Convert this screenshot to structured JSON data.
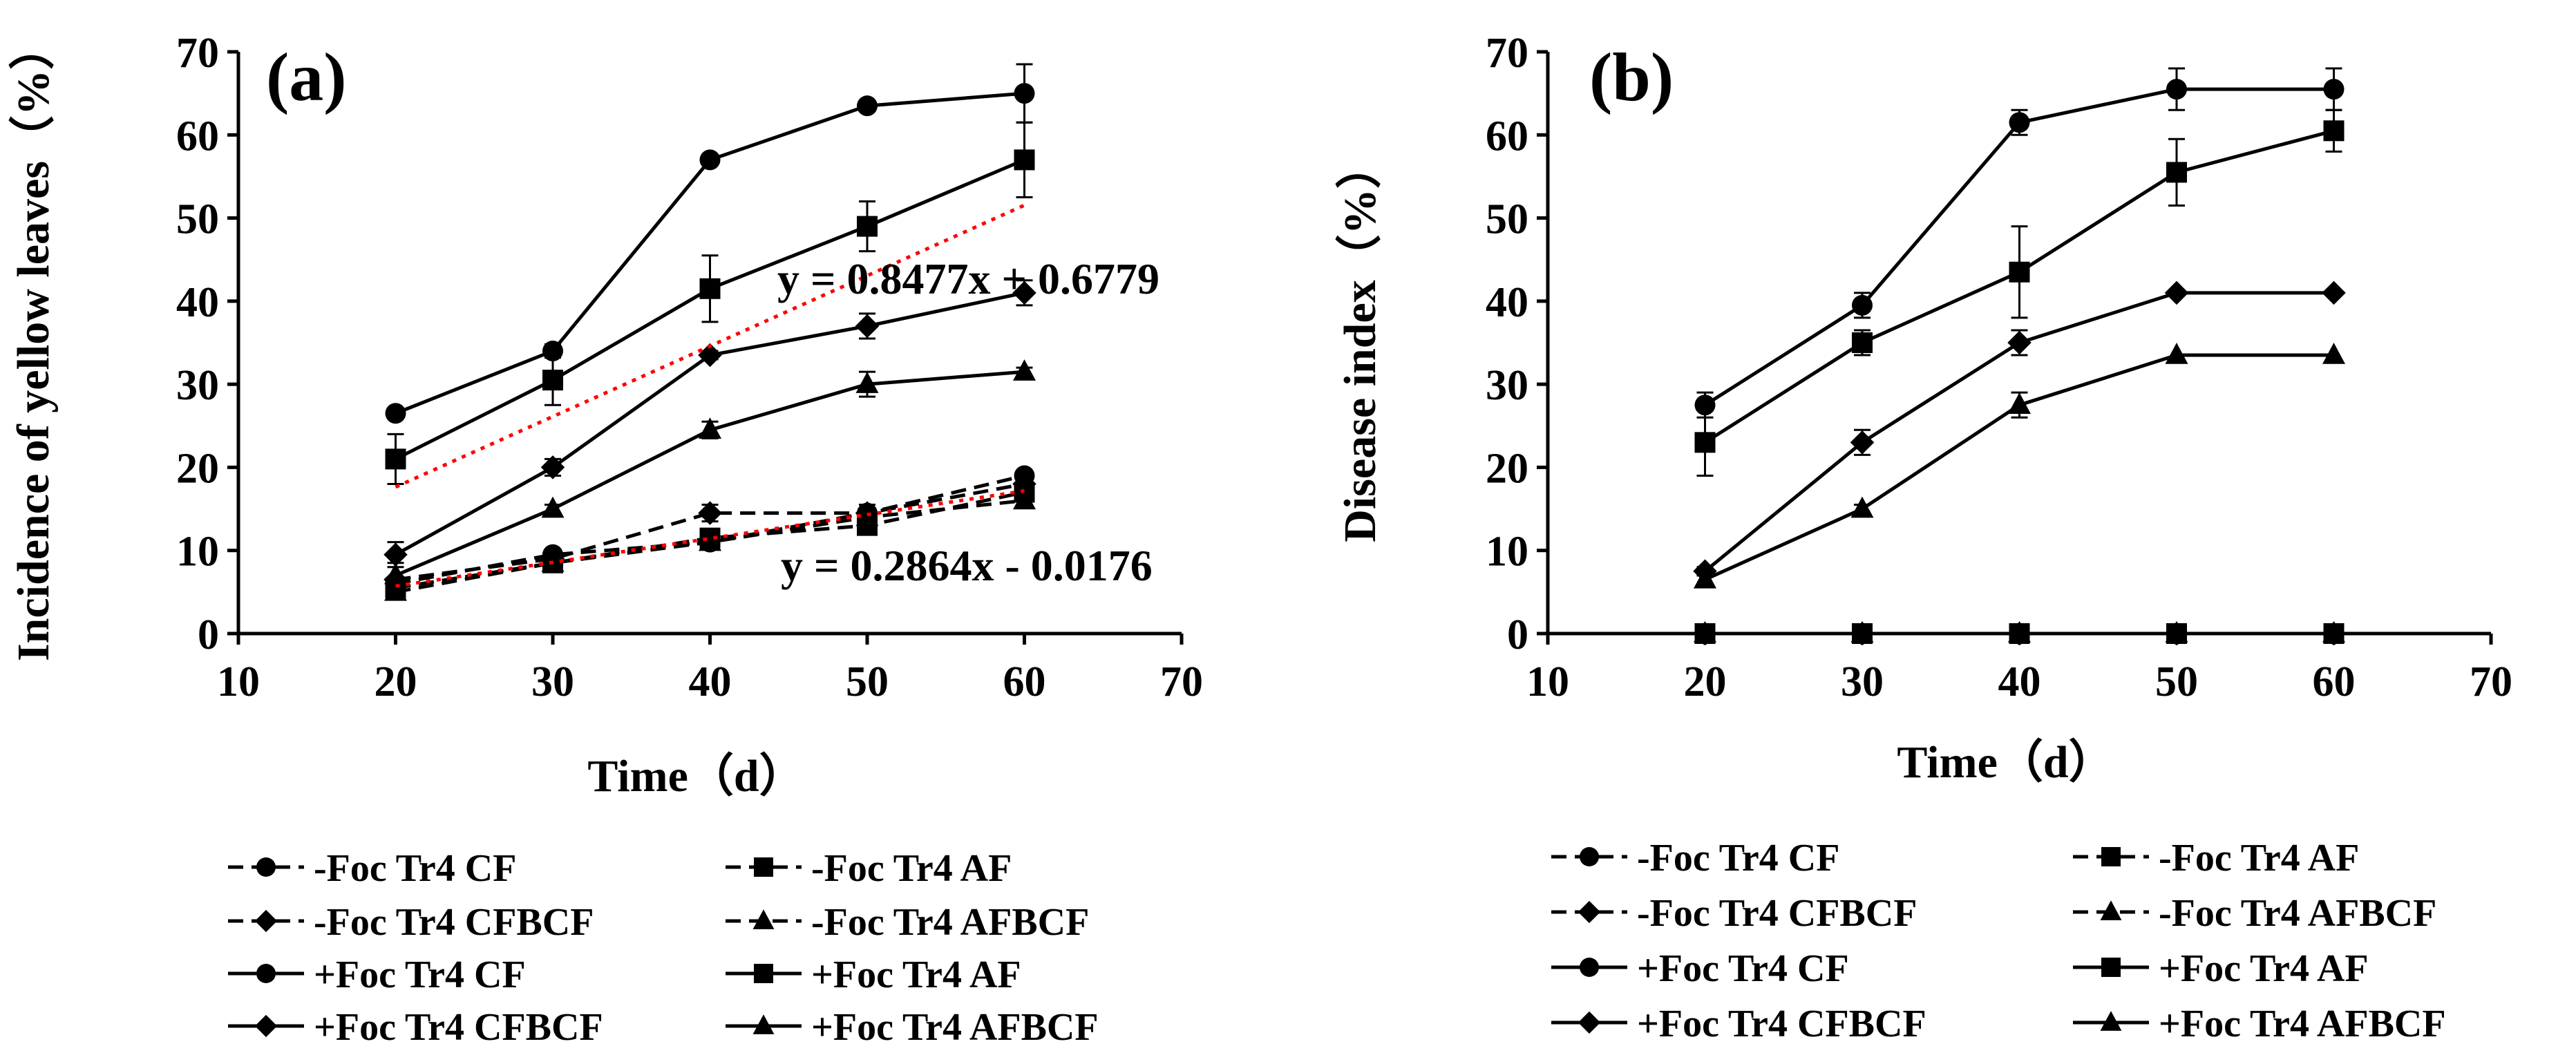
{
  "chart_data": [
    {
      "type": "line",
      "panel_label": "(a)",
      "xlabel": "Time（d）",
      "ylabel": "Incidence of yellow leaves（%）",
      "xlim": [
        10,
        70
      ],
      "ylim": [
        0,
        70
      ],
      "xticks": [
        10,
        20,
        30,
        40,
        50,
        60,
        70
      ],
      "yticks": [
        0,
        10,
        20,
        30,
        40,
        50,
        60,
        70
      ],
      "x": [
        20,
        30,
        40,
        50,
        60
      ],
      "series": [
        {
          "name": "-Foc Tr4 CF",
          "style": "dashed",
          "marker": "circle",
          "values": [
            6,
            9.5,
            11,
            14.5,
            19
          ],
          "errors": [
            0,
            0,
            0,
            0,
            0
          ]
        },
        {
          "name": "-Foc Tr4 AF",
          "style": "dashed",
          "marker": "square",
          "values": [
            5.5,
            8.5,
            11.5,
            13,
            17
          ],
          "errors": [
            0,
            0,
            0,
            0,
            0
          ]
        },
        {
          "name": "-Foc Tr4 CFBCF",
          "style": "dashed",
          "marker": "diamond",
          "values": [
            6.5,
            9,
            14.5,
            14.5,
            18
          ],
          "errors": [
            0,
            0,
            1,
            1,
            1
          ]
        },
        {
          "name": "-Foc Tr4 AFBCF",
          "style": "dashed",
          "marker": "triangle",
          "values": [
            5,
            8.5,
            11,
            14,
            16
          ],
          "errors": [
            0,
            0,
            0,
            0,
            0
          ]
        },
        {
          "name": "+Foc Tr4 CF",
          "style": "solid",
          "marker": "circle",
          "values": [
            26.5,
            34,
            57,
            63.5,
            65
          ],
          "errors": [
            0,
            0.8,
            0,
            0,
            3.5
          ]
        },
        {
          "name": "+Foc Tr4 AF",
          "style": "solid",
          "marker": "square",
          "values": [
            21,
            30.5,
            41.5,
            49,
            57
          ],
          "errors": [
            3,
            3,
            4,
            3,
            4.5
          ]
        },
        {
          "name": "+Foc Tr4 CFBCF",
          "style": "solid",
          "marker": "diamond",
          "values": [
            9.5,
            20,
            33.5,
            37,
            41
          ],
          "errors": [
            1.5,
            1,
            0.5,
            1.5,
            1.5
          ]
        },
        {
          "name": "+Foc Tr4 AFBCF",
          "style": "solid",
          "marker": "triangle",
          "values": [
            7,
            15,
            24.5,
            30,
            31.5
          ],
          "errors": [
            1.5,
            0.5,
            1,
            1.5,
            0.5
          ]
        }
      ],
      "trendlines": [
        {
          "label": "y = 0.8477x + 0.6779",
          "slope": 0.8477,
          "intercept": 0.6779,
          "color": "#ff0000",
          "x_range": [
            20,
            60
          ]
        },
        {
          "label": "y = 0.2864x - 0.0176",
          "slope": 0.2864,
          "intercept": -0.0176,
          "color": "#ff0000",
          "x_range": [
            20,
            60
          ]
        }
      ],
      "legend": {
        "placement": "bottom",
        "columns": 2
      }
    },
    {
      "type": "line",
      "panel_label": "(b)",
      "xlabel": "Time（d）",
      "ylabel": "Disease index（%）",
      "xlim": [
        10,
        70
      ],
      "ylim": [
        0,
        70
      ],
      "xticks": [
        10,
        20,
        30,
        40,
        50,
        60,
        70
      ],
      "yticks": [
        0,
        10,
        20,
        30,
        40,
        50,
        60,
        70
      ],
      "x": [
        20,
        30,
        40,
        50,
        60
      ],
      "series": [
        {
          "name": "-Foc Tr4 CF",
          "style": "dashed",
          "marker": "circle",
          "values": [
            0,
            0,
            0,
            0,
            0
          ],
          "errors": [
            0,
            0,
            0,
            0,
            0
          ]
        },
        {
          "name": "-Foc Tr4 AF",
          "style": "dashed",
          "marker": "square",
          "values": [
            0,
            0,
            0,
            0,
            0
          ],
          "errors": [
            0,
            0,
            0,
            0,
            0
          ]
        },
        {
          "name": "-Foc Tr4 CFBCF",
          "style": "dashed",
          "marker": "diamond",
          "values": [
            0,
            0,
            0,
            0,
            0
          ],
          "errors": [
            0,
            0,
            0,
            0,
            0
          ]
        },
        {
          "name": "-Foc Tr4 AFBCF",
          "style": "dashed",
          "marker": "triangle",
          "values": [
            0,
            0,
            0,
            0,
            0
          ],
          "errors": [
            0,
            0,
            0,
            0,
            0
          ]
        },
        {
          "name": "+Foc Tr4 CF",
          "style": "solid",
          "marker": "circle",
          "values": [
            27.5,
            39.5,
            61.5,
            65.5,
            65.5
          ],
          "errors": [
            1.5,
            1.5,
            1.5,
            2.5,
            2.5
          ]
        },
        {
          "name": "+Foc Tr4 AF",
          "style": "solid",
          "marker": "square",
          "values": [
            23,
            35,
            43.5,
            55.5,
            60.5
          ],
          "errors": [
            4,
            1.5,
            5.5,
            4,
            2.5
          ]
        },
        {
          "name": "+Foc Tr4 CFBCF",
          "style": "solid",
          "marker": "diamond",
          "values": [
            7.5,
            23,
            35,
            41,
            41
          ],
          "errors": [
            0.5,
            1.5,
            1.5,
            0,
            0
          ]
        },
        {
          "name": "+Foc Tr4 AFBCF",
          "style": "solid",
          "marker": "triangle",
          "values": [
            6.5,
            15,
            27.5,
            33.5,
            33.5
          ],
          "errors": [
            0.5,
            0.5,
            1.5,
            0,
            0
          ]
        }
      ],
      "trendlines": [],
      "legend": {
        "placement": "bottom",
        "columns": 2
      }
    }
  ]
}
